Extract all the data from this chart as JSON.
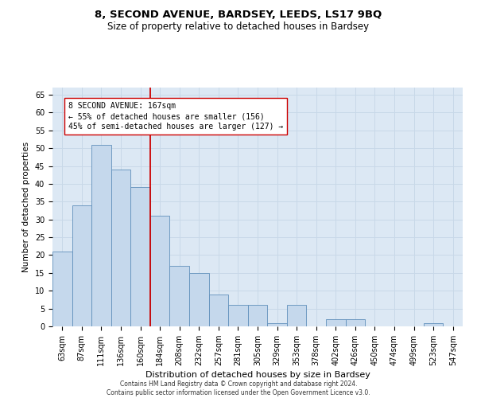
{
  "title": "8, SECOND AVENUE, BARDSEY, LEEDS, LS17 9BQ",
  "subtitle": "Size of property relative to detached houses in Bardsey",
  "xlabel": "Distribution of detached houses by size in Bardsey",
  "ylabel": "Number of detached properties",
  "categories": [
    "63sqm",
    "87sqm",
    "111sqm",
    "136sqm",
    "160sqm",
    "184sqm",
    "208sqm",
    "232sqm",
    "257sqm",
    "281sqm",
    "305sqm",
    "329sqm",
    "353sqm",
    "378sqm",
    "402sqm",
    "426sqm",
    "450sqm",
    "474sqm",
    "499sqm",
    "523sqm",
    "547sqm"
  ],
  "values": [
    21,
    34,
    51,
    44,
    39,
    31,
    17,
    15,
    9,
    6,
    6,
    1,
    6,
    0,
    2,
    2,
    0,
    0,
    0,
    1,
    0
  ],
  "bar_color": "#c5d8ec",
  "bar_edge_color": "#6090bb",
  "vline_x": 4.5,
  "vline_color": "#cc0000",
  "annotation_box_text": "8 SECOND AVENUE: 167sqm\n← 55% of detached houses are smaller (156)\n45% of semi-detached houses are larger (127) →",
  "ylim": [
    0,
    67
  ],
  "yticks": [
    0,
    5,
    10,
    15,
    20,
    25,
    30,
    35,
    40,
    45,
    50,
    55,
    60,
    65
  ],
  "grid_color": "#c8d8e8",
  "background_color": "#dce8f4",
  "footer_text": "Contains HM Land Registry data © Crown copyright and database right 2024.\nContains public sector information licensed under the Open Government Licence v3.0.",
  "title_fontsize": 9.5,
  "subtitle_fontsize": 8.5,
  "xlabel_fontsize": 8,
  "ylabel_fontsize": 7.5,
  "tick_fontsize": 7,
  "annotation_fontsize": 7,
  "footer_fontsize": 5.5
}
